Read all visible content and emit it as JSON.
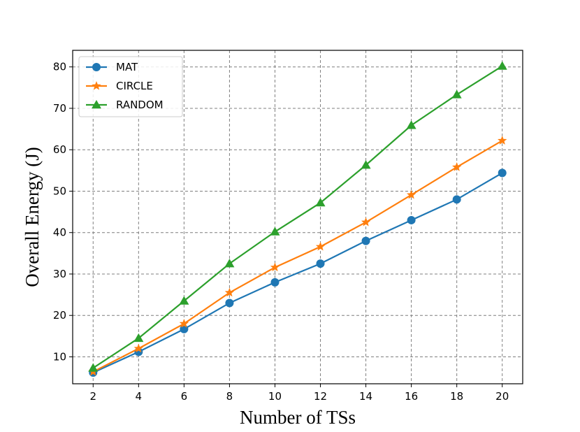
{
  "chart_data": {
    "type": "line",
    "xlabel": "Number of TSs",
    "ylabel": "Overall Energy (J)",
    "x": [
      2,
      4,
      6,
      8,
      10,
      12,
      14,
      16,
      18,
      20
    ],
    "xlim": [
      1.1,
      20.9
    ],
    "ylim": [
      3.5,
      84
    ],
    "xticks": [
      2,
      4,
      6,
      8,
      10,
      12,
      14,
      16,
      18,
      20
    ],
    "yticks": [
      10,
      20,
      30,
      40,
      50,
      60,
      70,
      80
    ],
    "grid": true,
    "legend_position": "top-left",
    "series": [
      {
        "name": "MAT",
        "color": "#1f77b4",
        "marker": "circle",
        "values": [
          6.2,
          11.2,
          16.7,
          23.0,
          28.0,
          32.5,
          38.0,
          43.0,
          48.0,
          54.4
        ]
      },
      {
        "name": "CIRCLE",
        "color": "#ff7f0e",
        "marker": "star",
        "values": [
          6.4,
          12.0,
          18.0,
          25.5,
          31.6,
          36.6,
          42.5,
          49.1,
          55.8,
          62.2
        ]
      },
      {
        "name": "RANDOM",
        "color": "#2ca02c",
        "marker": "triangle",
        "values": [
          7.3,
          14.5,
          23.5,
          32.5,
          40.2,
          47.2,
          56.3,
          65.9,
          73.3,
          80.2
        ]
      }
    ]
  }
}
